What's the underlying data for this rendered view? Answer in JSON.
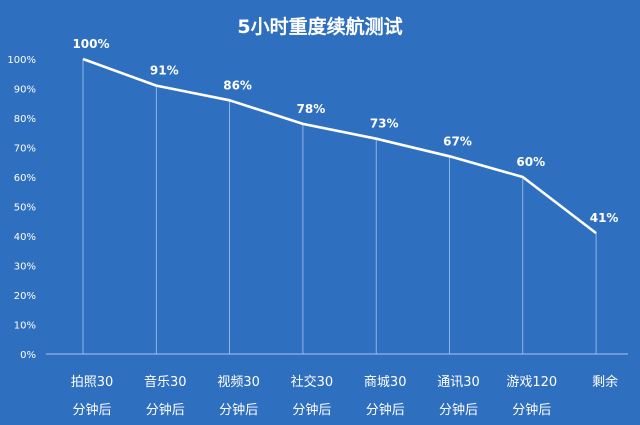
{
  "chart_data": {
    "type": "line",
    "title": "5小时重度续航测试",
    "categories": [
      [
        "拍照30",
        "分钟后"
      ],
      [
        "音乐30",
        "分钟后"
      ],
      [
        "视频30",
        "分钟后"
      ],
      [
        "社交30",
        "分钟后"
      ],
      [
        "商城30",
        "分钟后"
      ],
      [
        "通讯30",
        "分钟后"
      ],
      [
        "游戏120",
        "分钟后"
      ],
      [
        "剩余",
        ""
      ]
    ],
    "values": [
      100,
      91,
      86,
      78,
      73,
      67,
      60,
      41
    ],
    "data_labels": [
      "100%",
      "91%",
      "86%",
      "78%",
      "73%",
      "67%",
      "60%",
      "41%"
    ],
    "ylim": [
      0,
      100
    ],
    "ytick_labels": [
      "0%",
      "10%",
      "20%",
      "30%",
      "40%",
      "50%",
      "60%",
      "70%",
      "80%",
      "90%",
      "100%"
    ],
    "grid": false,
    "drop_lines": true,
    "colors": {
      "background": "#2f6fbf",
      "line": "#ffffff",
      "drop_line": "#a9c6ea",
      "text": "#ffffff"
    }
  }
}
